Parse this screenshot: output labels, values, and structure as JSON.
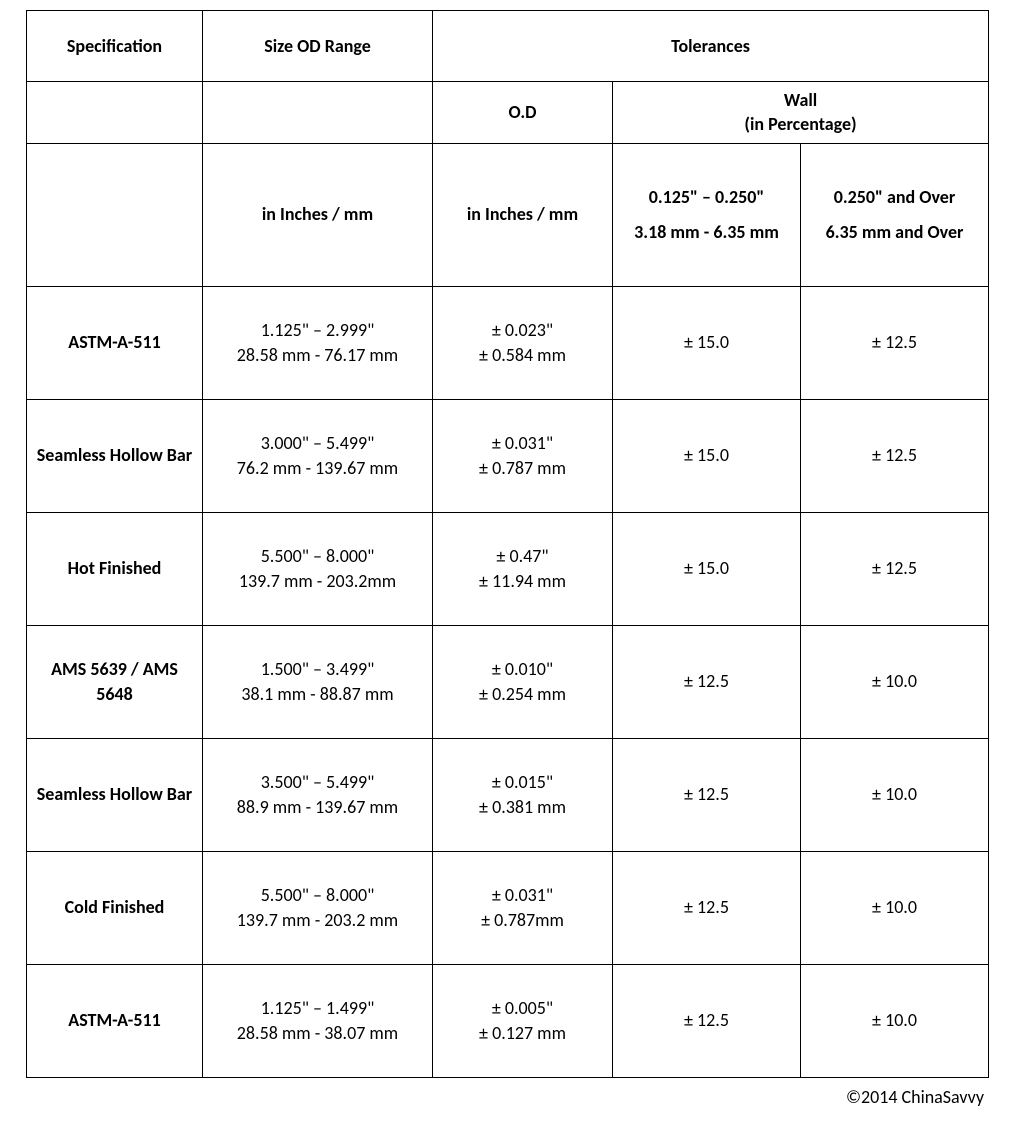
{
  "table": {
    "header": {
      "specification": "Specification",
      "size_od_range": "Size OD Range",
      "tolerances": "Tolerances",
      "od": "O.D",
      "wall_line1": "Wall",
      "wall_line2": "(in Percentage)",
      "units_size": "in Inches / mm",
      "units_od": "in Inches / mm",
      "wall_a_line1": "0.125\" – 0.250\"",
      "wall_a_line2": "3.18 mm - 6.35 mm",
      "wall_b_line1": "0.250\" and Over",
      "wall_b_line2": "6.35 mm and Over"
    },
    "rows": [
      {
        "spec": "ASTM-A-511",
        "size_in": "1.125\" – 2.999\"",
        "size_mm": "28.58 mm - 76.17 mm",
        "od_in": "± 0.023\"",
        "od_mm": "± 0.584 mm",
        "wall_a": "± 15.0",
        "wall_b": "± 12.5"
      },
      {
        "spec": "Seamless Hollow Bar",
        "size_in": "3.000\" – 5.499\"",
        "size_mm": "76.2 mm - 139.67 mm",
        "od_in": "± 0.031\"",
        "od_mm": "± 0.787 mm",
        "wall_a": "± 15.0",
        "wall_b": "± 12.5"
      },
      {
        "spec": "Hot Finished",
        "size_in": "5.500\" – 8.000\"",
        "size_mm": "139.7 mm - 203.2mm",
        "od_in": "± 0.47\"",
        "od_mm": "± 11.94 mm",
        "wall_a": "± 15.0",
        "wall_b": "± 12.5"
      },
      {
        "spec": "AMS 5639 / AMS 5648",
        "size_in": "1.500\" – 3.499\"",
        "size_mm": "38.1 mm - 88.87 mm",
        "od_in": "± 0.010\"",
        "od_mm": "± 0.254 mm",
        "wall_a": "± 12.5",
        "wall_b": "± 10.0"
      },
      {
        "spec": "Seamless Hollow Bar",
        "size_in": "3.500\" – 5.499\"",
        "size_mm": "88.9 mm - 139.67 mm",
        "od_in": "± 0.015\"",
        "od_mm": "± 0.381 mm",
        "wall_a": "± 12.5",
        "wall_b": "± 10.0"
      },
      {
        "spec": "Cold Finished",
        "size_in": "5.500\" – 8.000\"",
        "size_mm": "139.7 mm - 203.2 mm",
        "od_in": "± 0.031\"",
        "od_mm": "± 0.787mm",
        "wall_a": "± 12.5",
        "wall_b": "± 10.0"
      },
      {
        "spec": "ASTM-A-511",
        "size_in": "1.125\" – 1.499\"",
        "size_mm": "28.58 mm - 38.07 mm",
        "od_in": "± 0.005\"",
        "od_mm": "± 0.127 mm",
        "wall_a": "± 12.5",
        "wall_b": "± 10.0"
      }
    ]
  },
  "copyright": "©2014 ChinaSavvy"
}
